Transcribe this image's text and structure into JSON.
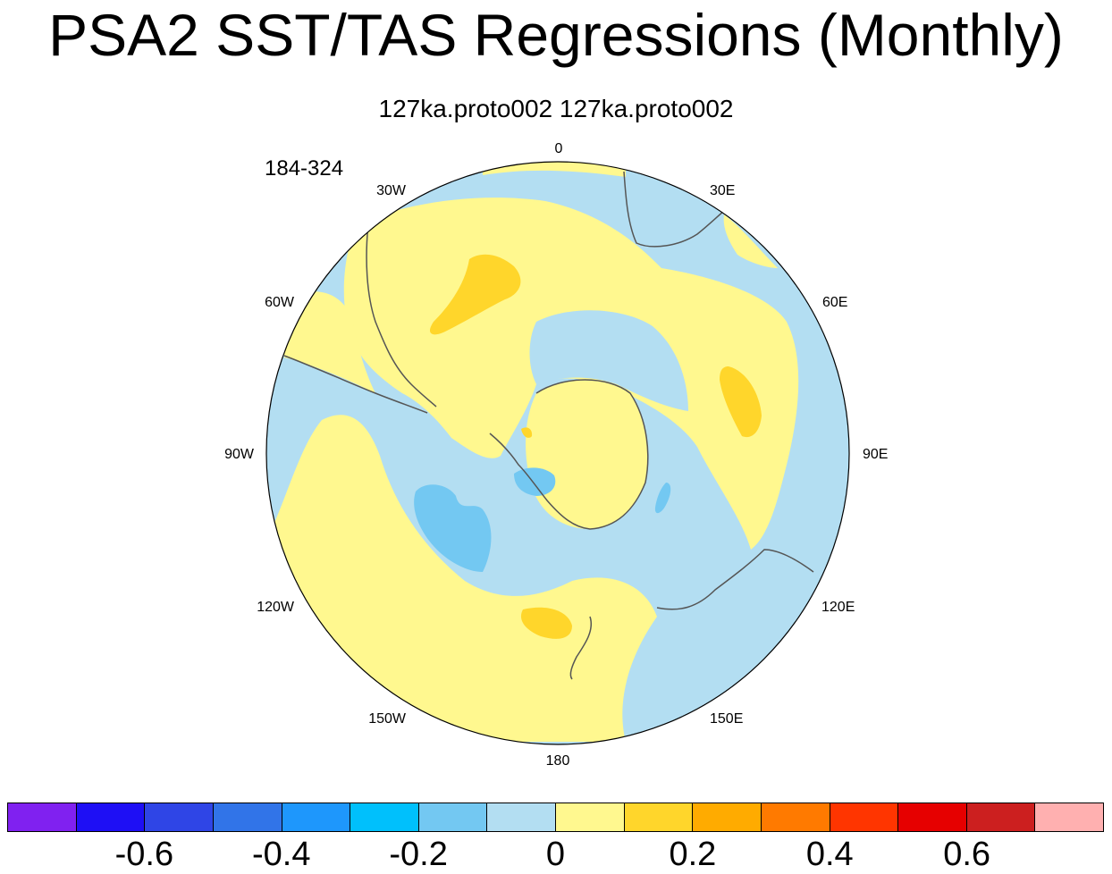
{
  "title": "PSA2 SST/TAS Regressions (Monthly)",
  "subtitle": "127ka.proto002  127ka.proto002",
  "period_label": "184-324",
  "map": {
    "projection": "south polar stereographic",
    "longitude_labels": [
      "0",
      "30E",
      "60E",
      "90E",
      "120E",
      "150E",
      "180",
      "150W",
      "120W",
      "90W",
      "60W",
      "30W"
    ],
    "ocean_fill_near_zero_negative": "#b3def2",
    "ocean_fill_near_zero_positive": "#fff88f",
    "coastline_color": "#555555"
  },
  "colorbar": {
    "colors": [
      "#8021f0",
      "#1e0ff5",
      "#2f45e6",
      "#3174e8",
      "#1e97fc",
      "#00c0fc",
      "#73c8f2",
      "#b3def2",
      "#fff88f",
      "#ffd62b",
      "#ffab00",
      "#ff7a00",
      "#ff3500",
      "#e60000",
      "#cc1f1f",
      "#ffb0b0"
    ],
    "labels": [
      "-0.6",
      "-0.4",
      "-0.2",
      "0",
      "0.2",
      "0.4",
      "0.6"
    ]
  }
}
